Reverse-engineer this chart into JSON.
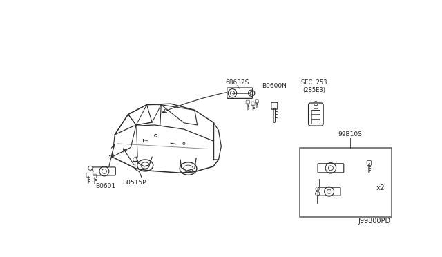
{
  "bg_color": "#ffffff",
  "line_color": "#2a2a2a",
  "text_color": "#222222",
  "fig_width": 6.4,
  "fig_height": 3.72,
  "dpi": 100,
  "labels": {
    "top_lock": "68632S",
    "blank_key": "B0600N",
    "fob": "SEC. 253\n(285E3)",
    "door_lock": "B0601",
    "door_cylinder": "B0515P",
    "set_label": "99B10S",
    "footer": "J99800PD"
  }
}
